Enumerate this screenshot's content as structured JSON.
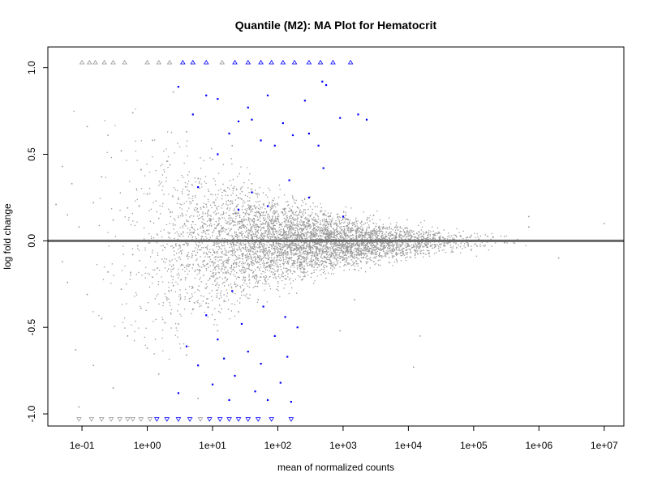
{
  "chart_data": {
    "type": "scatter",
    "title": "Quantile (M2): MA Plot for Hematocrit",
    "xlabel": "mean of normalized counts",
    "ylabel": "log fold change",
    "x_scale": "log10",
    "xlim": [
      0.03,
      20000000
    ],
    "ylim": [
      -1.07,
      1.12
    ],
    "x_ticks": [
      {
        "value": 0.1,
        "label": "1e-01"
      },
      {
        "value": 1,
        "label": "1e+00"
      },
      {
        "value": 10,
        "label": "1e+01"
      },
      {
        "value": 100,
        "label": "1e+02"
      },
      {
        "value": 1000,
        "label": "1e+03"
      },
      {
        "value": 10000,
        "label": "1e+04"
      },
      {
        "value": 100000,
        "label": "1e+05"
      },
      {
        "value": 1000000,
        "label": "1e+06"
      },
      {
        "value": 10000000,
        "label": "1e+07"
      }
    ],
    "y_ticks": [
      {
        "value": -1.0,
        "label": "-1.0"
      },
      {
        "value": -0.5,
        "label": "-0.5"
      },
      {
        "value": 0.0,
        "label": "0.0"
      },
      {
        "value": 0.5,
        "label": "0.5"
      },
      {
        "value": 1.0,
        "label": "1.0"
      }
    ],
    "reference_line": {
      "y": 0,
      "color": "#666666"
    },
    "colors": {
      "non_significant": "#999999",
      "significant": "#0000ff",
      "zero_line": "#666666"
    },
    "series": [
      {
        "group": "not significant",
        "color": "#999999",
        "points": [
          [
            0.04,
            0.21
          ],
          [
            0.05,
            0.43
          ],
          [
            0.05,
            -0.12
          ],
          [
            0.06,
            0.15
          ],
          [
            0.06,
            -0.24
          ],
          [
            0.07,
            0.33
          ],
          [
            0.08,
            -0.63
          ],
          [
            0.09,
            -0.96
          ],
          [
            0.09,
            0.08
          ],
          [
            0.12,
            0.66
          ],
          [
            0.12,
            -0.31
          ],
          [
            0.15,
            0.22
          ],
          [
            0.15,
            -0.72
          ],
          [
            0.2,
            0.37
          ],
          [
            0.2,
            -0.45
          ],
          [
            0.25,
            0.61
          ],
          [
            0.25,
            -0.18
          ],
          [
            0.3,
            0.12
          ],
          [
            0.3,
            -0.85
          ],
          [
            0.4,
            0.52
          ],
          [
            0.4,
            -0.28
          ],
          [
            0.5,
            0.19
          ],
          [
            0.5,
            -0.55
          ],
          [
            0.6,
            0.74
          ],
          [
            0.6,
            -0.08
          ],
          [
            0.8,
            0.41
          ],
          [
            0.8,
            -0.39
          ],
          [
            1,
            0.27
          ],
          [
            1,
            -0.62
          ],
          [
            1.2,
            0.58
          ],
          [
            1.2,
            -0.21
          ],
          [
            1.5,
            0.13
          ],
          [
            1.5,
            -0.77
          ],
          [
            2,
            0.46
          ],
          [
            2,
            -0.33
          ],
          [
            2.5,
            0.86
          ],
          [
            2.5,
            -0.14
          ],
          [
            3,
            0.24
          ],
          [
            3,
            -0.48
          ],
          [
            4,
            0.63
          ],
          [
            4,
            -0.66
          ],
          [
            5,
            0.11
          ],
          [
            5,
            -0.27
          ],
          [
            6,
            0.36
          ],
          [
            6,
            -0.91
          ],
          [
            8,
            0.21
          ],
          [
            8,
            -0.36
          ],
          [
            10,
            0.47
          ],
          [
            10,
            -0.12
          ],
          [
            12,
            0.09
          ],
          [
            12,
            -0.52
          ],
          [
            15,
            0.29
          ],
          [
            15,
            -0.24
          ],
          [
            20,
            0.55
          ],
          [
            20,
            -0.06
          ],
          [
            25,
            0.16
          ],
          [
            25,
            -0.41
          ],
          [
            30,
            0.08
          ],
          [
            30,
            -0.21
          ],
          [
            40,
            0.33
          ],
          [
            40,
            -0.13
          ],
          [
            50,
            0.12
          ],
          [
            50,
            -0.34
          ],
          [
            60,
            0.21
          ],
          [
            60,
            -0.05
          ],
          [
            80,
            0.07
          ],
          [
            80,
            -0.18
          ],
          [
            100,
            0.14
          ],
          [
            100,
            -0.09
          ],
          [
            130,
            0.05
          ],
          [
            130,
            -0.22
          ],
          [
            160,
            0.18
          ],
          [
            160,
            -0.04
          ],
          [
            200,
            0.09
          ],
          [
            200,
            -0.11
          ],
          [
            250,
            0.03
          ],
          [
            250,
            -0.16
          ],
          [
            300,
            0.12
          ],
          [
            300,
            -0.07
          ],
          [
            400,
            0.06
          ],
          [
            400,
            -0.13
          ],
          [
            500,
            0.15
          ],
          [
            500,
            -0.03
          ],
          [
            650,
            0.04
          ],
          [
            650,
            -0.09
          ],
          [
            800,
            0.09
          ],
          [
            800,
            -0.05
          ],
          [
            1000,
            0.02
          ],
          [
            1000,
            -0.11
          ],
          [
            1300,
            0.07
          ],
          [
            1300,
            -0.04
          ],
          [
            1600,
            0.03
          ],
          [
            1600,
            -0.08
          ],
          [
            2000,
            0.06
          ],
          [
            2000,
            -0.02
          ],
          [
            2500,
            0.02
          ],
          [
            2500,
            -0.06
          ],
          [
            3200,
            0.05
          ],
          [
            3200,
            -0.03
          ],
          [
            4000,
            0.01
          ],
          [
            4000,
            -0.05
          ],
          [
            5000,
            0.04
          ],
          [
            5000,
            -0.02
          ],
          [
            6500,
            0.02
          ],
          [
            6500,
            -0.04
          ],
          [
            8000,
            0.03
          ],
          [
            8000,
            -0.01
          ],
          [
            10000,
            0.01
          ],
          [
            10000,
            -0.03
          ],
          [
            13000,
            0.02
          ],
          [
            13000,
            -0.02
          ],
          [
            16000,
            0.01
          ],
          [
            16000,
            -0.01
          ],
          [
            20000,
            0.02
          ],
          [
            20000,
            -0.01
          ],
          [
            30000,
            0.01
          ],
          [
            30000,
            -0.02
          ],
          [
            50000,
            0.01
          ],
          [
            50000,
            -0.01
          ],
          [
            80000,
            0.02
          ],
          [
            80000,
            -0.01
          ],
          [
            120000,
            0.01
          ],
          [
            200000,
            0.02
          ],
          [
            300000,
            -0.01
          ],
          [
            400000,
            0.0
          ],
          [
            700000,
            0.14
          ],
          [
            700000,
            0.08
          ],
          [
            2000000,
            -0.1
          ],
          [
            10000000,
            0.1
          ],
          [
            15000,
            -0.55
          ],
          [
            12000,
            -0.73
          ],
          [
            900,
            -0.52
          ],
          [
            1500,
            -0.34
          ]
        ]
      },
      {
        "group": "significant",
        "color": "#0000ff",
        "points": [
          [
            3,
            0.89
          ],
          [
            5,
            0.73
          ],
          [
            8,
            0.84
          ],
          [
            12,
            0.82
          ],
          [
            18,
            0.62
          ],
          [
            25,
            0.69
          ],
          [
            35,
            0.77
          ],
          [
            40,
            0.7
          ],
          [
            55,
            0.58
          ],
          [
            70,
            0.84
          ],
          [
            90,
            0.55
          ],
          [
            120,
            0.68
          ],
          [
            170,
            0.61
          ],
          [
            260,
            0.81
          ],
          [
            300,
            0.62
          ],
          [
            420,
            0.55
          ],
          [
            480,
            0.92
          ],
          [
            550,
            0.9
          ],
          [
            900,
            0.71
          ],
          [
            1700,
            0.73
          ],
          [
            2300,
            0.7
          ],
          [
            6,
            0.31
          ],
          [
            12,
            0.5
          ],
          [
            25,
            0.18
          ],
          [
            40,
            0.28
          ],
          [
            70,
            0.2
          ],
          [
            150,
            0.35
          ],
          [
            300,
            0.25
          ],
          [
            500,
            0.42
          ],
          [
            1000,
            0.14
          ],
          [
            3,
            -0.88
          ],
          [
            4,
            -0.61
          ],
          [
            6,
            -0.72
          ],
          [
            8,
            -0.43
          ],
          [
            10,
            -0.83
          ],
          [
            12,
            -0.57
          ],
          [
            15,
            -0.68
          ],
          [
            18,
            -0.92
          ],
          [
            22,
            -0.78
          ],
          [
            28,
            -0.48
          ],
          [
            35,
            -0.64
          ],
          [
            45,
            -0.87
          ],
          [
            55,
            -0.71
          ],
          [
            70,
            -0.92
          ],
          [
            90,
            -0.55
          ],
          [
            110,
            -0.82
          ],
          [
            140,
            -0.67
          ],
          [
            160,
            -0.93
          ],
          [
            20,
            -0.29
          ],
          [
            60,
            -0.38
          ],
          [
            130,
            -0.44
          ],
          [
            200,
            -0.5
          ]
        ]
      },
      {
        "group": "out of range (up)",
        "marker": "open triangle up",
        "points": [
          [
            0.1,
            1.03,
            "#999999"
          ],
          [
            0.13,
            1.03,
            "#999999"
          ],
          [
            0.16,
            1.03,
            "#999999"
          ],
          [
            0.22,
            1.03,
            "#999999"
          ],
          [
            0.3,
            1.03,
            "#999999"
          ],
          [
            0.45,
            1.03,
            "#999999"
          ],
          [
            1,
            1.03,
            "#999999"
          ],
          [
            1.5,
            1.03,
            "#999999"
          ],
          [
            2.2,
            1.03,
            "#999999"
          ],
          [
            3.5,
            1.03,
            "#0000ff"
          ],
          [
            5,
            1.03,
            "#0000ff"
          ],
          [
            8,
            1.03,
            "#0000ff"
          ],
          [
            14,
            1.03,
            "#999999"
          ],
          [
            22,
            1.03,
            "#0000ff"
          ],
          [
            35,
            1.03,
            "#0000ff"
          ],
          [
            55,
            1.03,
            "#0000ff"
          ],
          [
            80,
            1.03,
            "#0000ff"
          ],
          [
            120,
            1.03,
            "#0000ff"
          ],
          [
            180,
            1.03,
            "#0000ff"
          ],
          [
            300,
            1.03,
            "#0000ff"
          ],
          [
            450,
            1.03,
            "#0000ff"
          ],
          [
            700,
            1.03,
            "#0000ff"
          ],
          [
            1300,
            1.03,
            "#0000ff"
          ]
        ]
      },
      {
        "group": "out of range (down)",
        "marker": "open triangle down",
        "points": [
          [
            0.09,
            -1.03,
            "#999999"
          ],
          [
            0.14,
            -1.03,
            "#999999"
          ],
          [
            0.2,
            -1.03,
            "#999999"
          ],
          [
            0.28,
            -1.03,
            "#999999"
          ],
          [
            0.38,
            -1.03,
            "#999999"
          ],
          [
            0.5,
            -1.03,
            "#999999"
          ],
          [
            0.6,
            -1.03,
            "#999999"
          ],
          [
            0.8,
            -1.03,
            "#999999"
          ],
          [
            1.1,
            -1.03,
            "#999999"
          ],
          [
            1.4,
            -1.03,
            "#0000ff"
          ],
          [
            2,
            -1.03,
            "#0000ff"
          ],
          [
            3,
            -1.03,
            "#0000ff"
          ],
          [
            4.5,
            -1.03,
            "#0000ff"
          ],
          [
            6.5,
            -1.03,
            "#999999"
          ],
          [
            9,
            -1.03,
            "#0000ff"
          ],
          [
            13,
            -1.03,
            "#0000ff"
          ],
          [
            18,
            -1.03,
            "#0000ff"
          ],
          [
            25,
            -1.03,
            "#0000ff"
          ],
          [
            35,
            -1.03,
            "#0000ff"
          ],
          [
            50,
            -1.03,
            "#0000ff"
          ],
          [
            80,
            -1.03,
            "#0000ff"
          ],
          [
            160,
            -1.03,
            "#0000ff"
          ]
        ]
      }
    ]
  }
}
